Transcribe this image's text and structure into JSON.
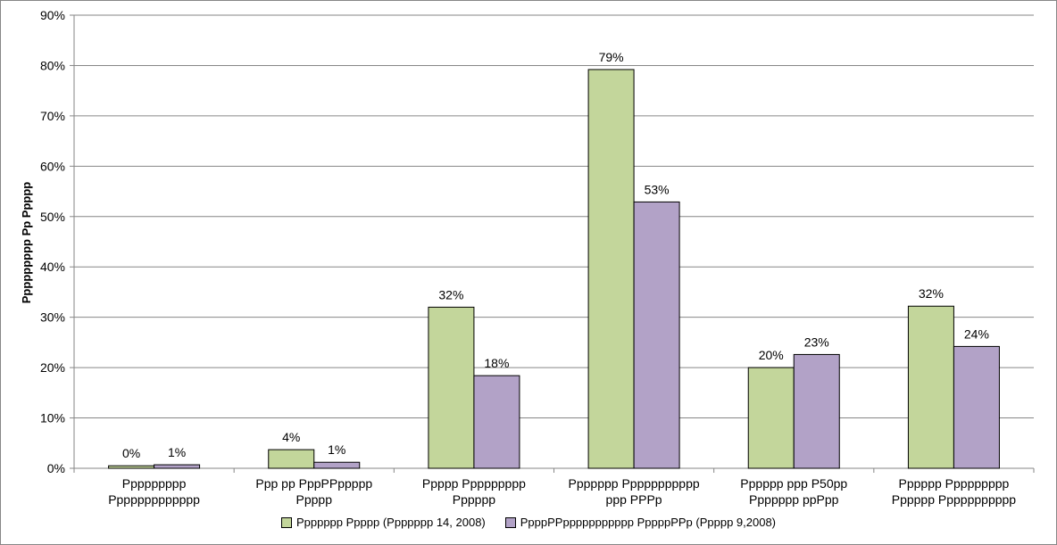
{
  "chart_data": {
    "type": "bar",
    "ylabel": "Ppppppppp Pp Ppppp",
    "xlabel": "",
    "ylim": [
      0,
      90
    ],
    "yticks": [
      0,
      10,
      20,
      30,
      40,
      50,
      60,
      70,
      80,
      90
    ],
    "ytick_labels": [
      "0%",
      "10%",
      "20%",
      "30%",
      "40%",
      "50%",
      "60%",
      "70%",
      "80%",
      "90%"
    ],
    "grid": true,
    "legend_position": "bottom",
    "categories": [
      [
        "Ppppppppp",
        "Ppppppppppppp"
      ],
      [
        "Ppp pp PppPPppppp",
        "Ppppp"
      ],
      [
        "Ppppp Ppppppppp",
        "Pppppp"
      ],
      [
        "Ppppppp Ppppppppppp",
        "ppp PPPp"
      ],
      [
        "Pppppp ppp P50pp",
        "Ppppppp ppPpp"
      ],
      [
        "Pppppp Ppppppppp",
        "Pppppp Ppppppppppp"
      ]
    ],
    "series": [
      {
        "name": "Ppppppp Ppppp (Ppppppp 14, 2008)",
        "color": "#c3d69b",
        "values": [
          0.5,
          3.7,
          32,
          79.2,
          20,
          32.2
        ],
        "labels": [
          "0%",
          "4%",
          "32%",
          "79%",
          "20%",
          "32%"
        ]
      },
      {
        "name": "PpppPPppppppppppp PppppPPp (Ppppp 9,2008)",
        "color": "#b2a2c7",
        "values": [
          0.7,
          1.2,
          18.4,
          52.9,
          22.6,
          24.2
        ],
        "labels": [
          "1%",
          "1%",
          "18%",
          "53%",
          "23%",
          "24%"
        ]
      }
    ]
  }
}
